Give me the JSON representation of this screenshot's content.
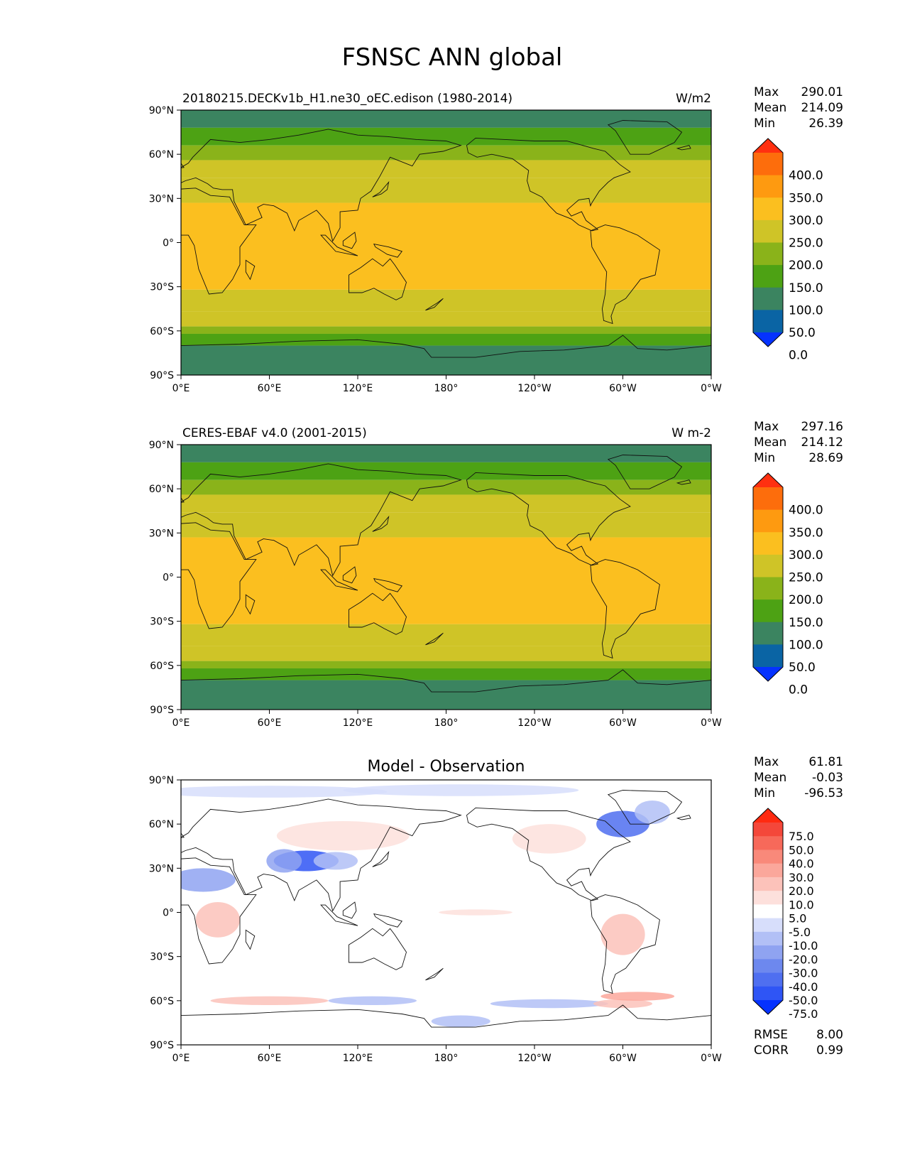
{
  "figure": {
    "title": "FSNSC ANN global"
  },
  "axes": {
    "lat_ticks": [
      "90°N",
      "60°N",
      "30°N",
      "0°",
      "30°S",
      "60°S",
      "90°S"
    ],
    "lon_ticks": [
      "0°E",
      "60°E",
      "120°E",
      "180°",
      "120°W",
      "60°W",
      "0°W"
    ]
  },
  "stat_labels": {
    "max": "Max",
    "mean": "Mean",
    "min": "Min",
    "rmse": "RMSE",
    "corr": "CORR"
  },
  "chart_data": [
    {
      "type": "heatmap",
      "title": "20180215.DECKv1b_H1.ne30_oEC.edison (1980-2014)",
      "units": "W/m2",
      "stats": {
        "max": "290.01",
        "mean": "214.09",
        "min": "26.39"
      },
      "colorbar": {
        "labels": [
          "400.0",
          "350.0",
          "300.0",
          "250.0",
          "200.0",
          "150.0",
          "100.0",
          "50.0",
          "0.0"
        ],
        "colors": [
          "#0532ff",
          "#0a64a4",
          "#3b8460",
          "#4da214",
          "#8ab31a",
          "#cfc427",
          "#fbbf1f",
          "#fe9a10",
          "#fd6d0c",
          "#ff3010"
        ]
      },
      "zonal_bands": [
        {
          "lat": [
            90,
            78
          ],
          "value": 75
        },
        {
          "lat": [
            78,
            66
          ],
          "value": 125
        },
        {
          "lat": [
            66,
            56
          ],
          "value": 175
        },
        {
          "lat": [
            56,
            44
          ],
          "value": 205
        },
        {
          "lat": [
            44,
            27
          ],
          "value": 230
        },
        {
          "lat": [
            27,
            -32
          ],
          "value": 275
        },
        {
          "lat": [
            -32,
            -47
          ],
          "value": 230
        },
        {
          "lat": [
            -47,
            -57
          ],
          "value": 200
        },
        {
          "lat": [
            -57,
            -62
          ],
          "value": 175
        },
        {
          "lat": [
            -62,
            -70
          ],
          "value": 125
        },
        {
          "lat": [
            -70,
            -90
          ],
          "value": 75
        }
      ]
    },
    {
      "type": "heatmap",
      "title": "CERES-EBAF v4.0 (2001-2015)",
      "units": "W m-2",
      "stats": {
        "max": "297.16",
        "mean": "214.12",
        "min": "28.69"
      },
      "colorbar": {
        "labels": [
          "400.0",
          "350.0",
          "300.0",
          "250.0",
          "200.0",
          "150.0",
          "100.0",
          "50.0",
          "0.0"
        ],
        "colors": [
          "#0532ff",
          "#0a64a4",
          "#3b8460",
          "#4da214",
          "#8ab31a",
          "#cfc427",
          "#fbbf1f",
          "#fe9a10",
          "#fd6d0c",
          "#ff3010"
        ]
      },
      "zonal_bands": [
        {
          "lat": [
            90,
            78
          ],
          "value": 75
        },
        {
          "lat": [
            78,
            66
          ],
          "value": 125
        },
        {
          "lat": [
            66,
            56
          ],
          "value": 175
        },
        {
          "lat": [
            56,
            44
          ],
          "value": 205
        },
        {
          "lat": [
            44,
            27
          ],
          "value": 230
        },
        {
          "lat": [
            27,
            -32
          ],
          "value": 275
        },
        {
          "lat": [
            -32,
            -47
          ],
          "value": 230
        },
        {
          "lat": [
            -47,
            -57
          ],
          "value": 200
        },
        {
          "lat": [
            -57,
            -62
          ],
          "value": 175
        },
        {
          "lat": [
            -62,
            -70
          ],
          "value": 125
        },
        {
          "lat": [
            -70,
            -90
          ],
          "value": 75
        }
      ]
    },
    {
      "type": "heatmap",
      "title": "Model - Observation",
      "units": "",
      "stats": {
        "max": "61.81",
        "mean": "-0.03",
        "min": "-96.53",
        "rmse": "8.00",
        "corr": "0.99"
      },
      "colorbar": {
        "labels": [
          "75.0",
          "50.0",
          "40.0",
          "30.0",
          "20.0",
          "10.0",
          "5.0",
          "-5.0",
          "-10.0",
          "-20.0",
          "-30.0",
          "-40.0",
          "-50.0",
          "-75.0"
        ],
        "colors": [
          "#0532ff",
          "#2f55f5",
          "#4f6ff0",
          "#6d88ee",
          "#8fa3f1",
          "#b2c0f6",
          "#d7defb",
          "#ffffff",
          "#fde0dc",
          "#fcc2ba",
          "#fba79b",
          "#f9897a",
          "#f7695a",
          "#f4473a",
          "#ff2a10"
        ]
      }
    }
  ]
}
